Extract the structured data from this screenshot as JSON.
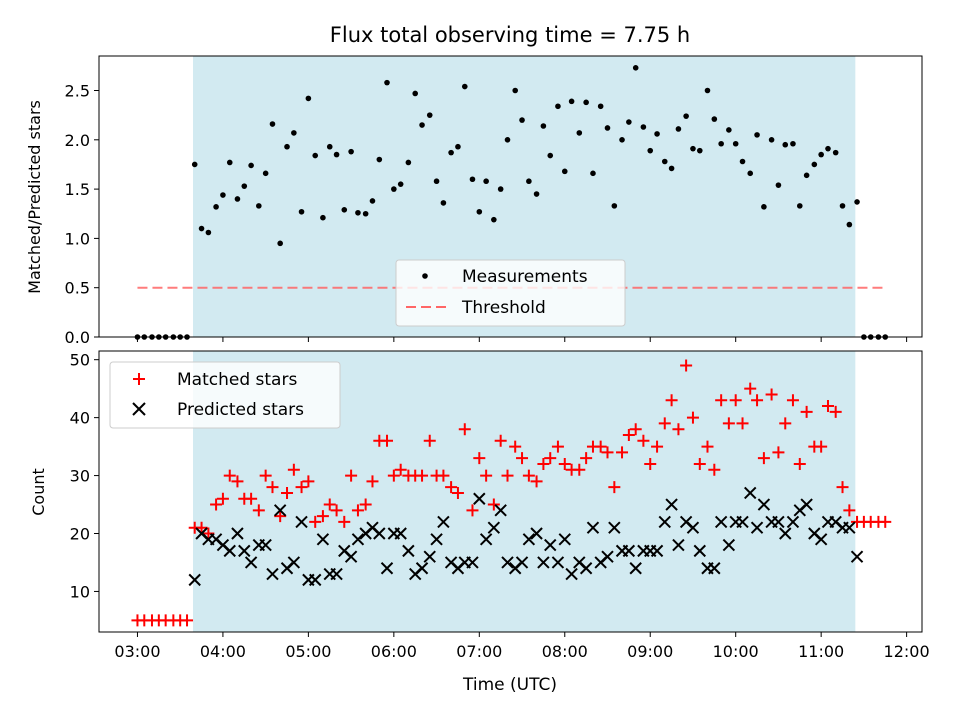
{
  "figure": {
    "title": "Flux total observing time = 7.75 h",
    "xlabel": "Time (UTC)",
    "x_ticks": [
      "03:00",
      "04:00",
      "05:00",
      "06:00",
      "07:00",
      "08:00",
      "09:00",
      "10:00",
      "11:00",
      "12:00"
    ],
    "x_tick_hours": [
      3,
      4,
      5,
      6,
      7,
      8,
      9,
      10,
      11,
      12
    ],
    "xlim_hours": [
      2.55,
      12.18
    ],
    "observing_window_hours": [
      3.65,
      11.4
    ],
    "colors": {
      "shade": "#add8e6",
      "measurement": "#000000",
      "threshold": "#ff6666",
      "matched": "#ff0000",
      "predicted": "#000000"
    }
  },
  "chart_data": [
    {
      "type": "scatter",
      "ylabel": "Matched/Predicted stars",
      "ylim": [
        0,
        2.85
      ],
      "y_ticks": [
        "0.0",
        "0.5",
        "1.0",
        "1.5",
        "2.0",
        "2.5"
      ],
      "y_tick_values": [
        0,
        0.5,
        1.0,
        1.5,
        2.0,
        2.5
      ],
      "legend": {
        "placement": "lower-center",
        "entries": [
          "Measurements",
          "Threshold"
        ]
      },
      "threshold": {
        "name": "Threshold",
        "value": 0.5,
        "x_range": [
          3.0,
          11.75
        ]
      },
      "series": [
        {
          "name": "Measurements",
          "x": [
            3.0,
            3.08,
            3.17,
            3.25,
            3.33,
            3.42,
            3.5,
            3.58,
            3.67,
            3.75,
            3.83,
            3.92,
            4.0,
            4.08,
            4.17,
            4.25,
            4.33,
            4.42,
            4.5,
            4.58,
            4.67,
            4.75,
            4.83,
            4.92,
            5.0,
            5.08,
            5.17,
            5.25,
            5.33,
            5.42,
            5.5,
            5.58,
            5.67,
            5.75,
            5.83,
            5.92,
            6.0,
            6.08,
            6.17,
            6.25,
            6.33,
            6.42,
            6.5,
            6.58,
            6.67,
            6.75,
            6.83,
            6.92,
            7.0,
            7.08,
            7.17,
            7.25,
            7.33,
            7.42,
            7.5,
            7.58,
            7.67,
            7.75,
            7.83,
            7.92,
            8.0,
            8.08,
            8.17,
            8.25,
            8.33,
            8.42,
            8.5,
            8.58,
            8.67,
            8.75,
            8.83,
            8.92,
            9.0,
            9.08,
            9.17,
            9.25,
            9.33,
            9.42,
            9.5,
            9.58,
            9.67,
            9.75,
            9.83,
            9.92,
            10.0,
            10.08,
            10.17,
            10.25,
            10.33,
            10.42,
            10.5,
            10.58,
            10.67,
            10.75,
            10.83,
            10.92,
            11.0,
            11.08,
            11.17,
            11.25,
            11.33,
            11.42,
            11.5,
            11.58,
            11.67,
            11.75
          ],
          "y": [
            0,
            0,
            0,
            0,
            0,
            0,
            0,
            0,
            1.75,
            1.1,
            1.06,
            1.32,
            1.44,
            1.77,
            1.4,
            1.53,
            1.74,
            1.33,
            1.66,
            2.16,
            0.95,
            1.93,
            2.07,
            1.27,
            2.42,
            1.84,
            1.21,
            1.93,
            1.85,
            1.29,
            1.88,
            1.26,
            1.25,
            1.38,
            1.8,
            2.58,
            1.5,
            1.55,
            1.77,
            2.47,
            2.15,
            2.25,
            1.58,
            1.36,
            1.87,
            1.93,
            2.54,
            1.6,
            1.27,
            1.58,
            1.19,
            1.5,
            2.0,
            2.5,
            2.2,
            1.58,
            1.45,
            2.14,
            1.84,
            2.34,
            1.68,
            2.39,
            2.07,
            2.38,
            1.66,
            2.34,
            2.12,
            1.33,
            2.0,
            2.18,
            2.73,
            2.13,
            1.89,
            2.06,
            1.78,
            1.71,
            2.11,
            2.24,
            1.91,
            1.89,
            2.5,
            2.21,
            1.96,
            2.1,
            1.96,
            1.78,
            1.66,
            2.05,
            1.32,
            2.0,
            1.54,
            1.95,
            1.96,
            1.33,
            1.64,
            1.75,
            1.85,
            1.91,
            1.87,
            1.33,
            1.14,
            1.37,
            0,
            0,
            0,
            0
          ]
        }
      ]
    },
    {
      "type": "scatter",
      "ylabel": "Count",
      "ylim": [
        3,
        51.5
      ],
      "y_ticks": [
        "10",
        "20",
        "30",
        "40",
        "50"
      ],
      "y_tick_values": [
        10,
        20,
        30,
        40,
        50
      ],
      "legend": {
        "placement": "upper-left",
        "entries": [
          "Matched stars",
          "Predicted stars"
        ]
      },
      "series": [
        {
          "name": "Matched stars",
          "x": [
            3.0,
            3.08,
            3.17,
            3.25,
            3.33,
            3.42,
            3.5,
            3.58,
            3.67,
            3.75,
            3.83,
            3.92,
            4.0,
            4.08,
            4.17,
            4.25,
            4.33,
            4.42,
            4.5,
            4.58,
            4.67,
            4.75,
            4.83,
            4.92,
            5.0,
            5.08,
            5.17,
            5.25,
            5.33,
            5.42,
            5.5,
            5.58,
            5.67,
            5.75,
            5.83,
            5.92,
            6.0,
            6.08,
            6.17,
            6.25,
            6.33,
            6.42,
            6.5,
            6.58,
            6.67,
            6.75,
            6.83,
            6.92,
            7.0,
            7.08,
            7.17,
            7.25,
            7.33,
            7.42,
            7.5,
            7.58,
            7.67,
            7.75,
            7.83,
            7.92,
            8.0,
            8.08,
            8.17,
            8.25,
            8.33,
            8.42,
            8.5,
            8.58,
            8.67,
            8.75,
            8.83,
            8.92,
            9.0,
            9.08,
            9.17,
            9.25,
            9.33,
            9.42,
            9.5,
            9.58,
            9.67,
            9.75,
            9.83,
            9.92,
            10.0,
            10.08,
            10.17,
            10.25,
            10.33,
            10.42,
            10.5,
            10.58,
            10.67,
            10.75,
            10.83,
            10.92,
            11.0,
            11.08,
            11.17,
            11.25,
            11.33,
            11.42,
            11.5,
            11.58,
            11.67,
            11.75
          ],
          "y": [
            5,
            5,
            5,
            5,
            5,
            5,
            5,
            5,
            21,
            21,
            20,
            25,
            26,
            30,
            29,
            26,
            26,
            24,
            30,
            28,
            23,
            27,
            31,
            28,
            29,
            22,
            23,
            25,
            24,
            22,
            30,
            24,
            25,
            29,
            36,
            36,
            30,
            31,
            30,
            30,
            30,
            36,
            30,
            30,
            28,
            27,
            38,
            24,
            33,
            30,
            25,
            36,
            30,
            35,
            33,
            30,
            29,
            32,
            33,
            35,
            32,
            31,
            31,
            33,
            35,
            35,
            34,
            28,
            34,
            37,
            38,
            36,
            32,
            35,
            39,
            43,
            38,
            49,
            40,
            32,
            35,
            31,
            43,
            39,
            43,
            39,
            45,
            43,
            33,
            44,
            34,
            39,
            43,
            32,
            41,
            35,
            35,
            42,
            41,
            28,
            24,
            22,
            22,
            22,
            22,
            22
          ]
        },
        {
          "name": "Predicted stars",
          "x": [
            3.67,
            3.75,
            3.83,
            3.92,
            4.0,
            4.08,
            4.17,
            4.25,
            4.33,
            4.42,
            4.5,
            4.58,
            4.67,
            4.75,
            4.83,
            4.92,
            5.0,
            5.08,
            5.17,
            5.25,
            5.33,
            5.42,
            5.5,
            5.58,
            5.67,
            5.75,
            5.83,
            5.92,
            6.0,
            6.08,
            6.17,
            6.25,
            6.33,
            6.42,
            6.5,
            6.58,
            6.67,
            6.75,
            6.83,
            6.92,
            7.0,
            7.08,
            7.17,
            7.25,
            7.33,
            7.42,
            7.5,
            7.58,
            7.67,
            7.75,
            7.83,
            7.92,
            8.0,
            8.08,
            8.17,
            8.25,
            8.33,
            8.42,
            8.5,
            8.58,
            8.67,
            8.75,
            8.83,
            8.92,
            9.0,
            9.08,
            9.17,
            9.25,
            9.33,
            9.42,
            9.5,
            9.58,
            9.67,
            9.75,
            9.83,
            9.92,
            10.0,
            10.08,
            10.17,
            10.25,
            10.33,
            10.42,
            10.5,
            10.58,
            10.67,
            10.75,
            10.83,
            10.92,
            11.0,
            11.08,
            11.17,
            11.25,
            11.33,
            11.42
          ],
          "y": [
            12,
            20,
            19,
            19,
            18,
            17,
            20,
            17,
            15,
            18,
            18,
            13,
            24,
            14,
            15,
            22,
            12,
            12,
            19,
            13,
            13,
            17,
            16,
            19,
            20,
            21,
            20,
            14,
            20,
            20,
            17,
            13,
            14,
            16,
            19,
            22,
            15,
            14,
            15,
            15,
            26,
            19,
            21,
            24,
            15,
            14,
            15,
            19,
            20,
            15,
            18,
            15,
            19,
            13,
            15,
            14,
            21,
            15,
            16,
            21,
            17,
            17,
            14,
            17,
            17,
            17,
            22,
            25,
            18,
            22,
            21,
            17,
            14,
            14,
            22,
            18,
            22,
            22,
            27,
            21,
            25,
            22,
            22,
            20,
            22,
            24,
            25,
            20,
            19,
            22,
            22,
            21,
            21,
            16
          ]
        }
      ]
    }
  ]
}
